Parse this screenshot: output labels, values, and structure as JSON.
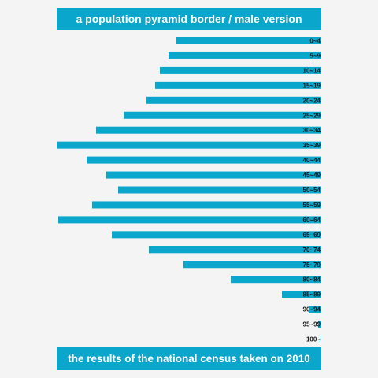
{
  "title": "a population pyramid border / male version",
  "footer": "the results of the national census taken on 2010",
  "colors": {
    "bar": "#0aa6cc",
    "background": "#f4f4f4",
    "banner": "#0aa6cc"
  },
  "chart_data": {
    "type": "bar",
    "orientation": "horizontal",
    "categories": [
      "0~4",
      "5~9",
      "10~14",
      "15~19",
      "20~24",
      "25~29",
      "30~34",
      "35~39",
      "40~44",
      "45~49",
      "50~54",
      "55~59",
      "60~64",
      "65~69",
      "70~74",
      "75~79",
      "80~84",
      "85~89",
      "90~94",
      "95~99",
      "100~"
    ],
    "values": [
      184,
      194,
      205,
      211,
      222,
      251,
      286,
      336,
      298,
      273,
      258,
      291,
      334,
      266,
      219,
      175,
      115,
      50,
      16,
      4,
      1
    ],
    "title": "a population pyramid border / male version",
    "xlabel": "",
    "ylabel": "",
    "xlim": [
      0,
      336
    ],
    "grid": false,
    "legend": "none"
  }
}
